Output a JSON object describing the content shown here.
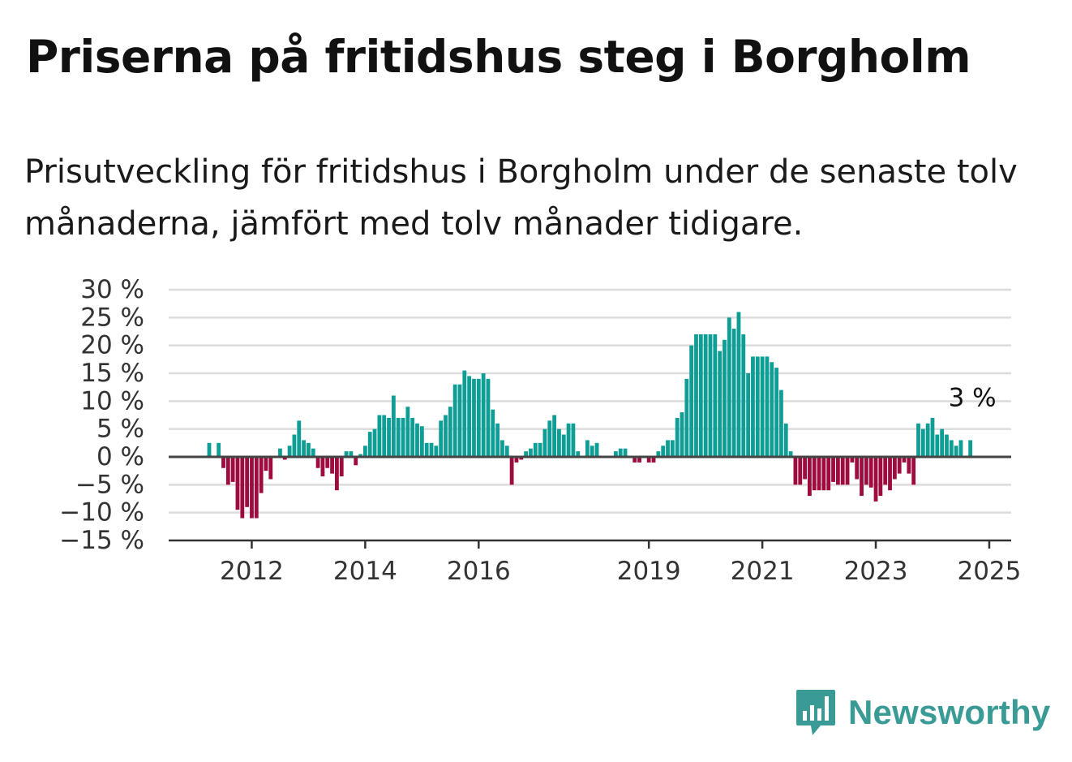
{
  "title": "Priserna på fritidshus steg i Borgholm",
  "subtitle": "Prisutveckling för fritidshus i Borgholm under de senaste tolv månaderna, jämfört med tolv månader tidigare.",
  "brand": {
    "name": "Newsworthy",
    "icon": "bar-chart-speech-bubble-icon",
    "color": "#3a9a95"
  },
  "colors": {
    "positive": "#0f9e96",
    "negative": "#9e0b3f",
    "grid": "#dcdcdc",
    "zero_line": "#444444"
  },
  "chart_data": {
    "type": "bar",
    "title": "",
    "xlabel": "",
    "ylabel": "",
    "ylim": [
      -15,
      30
    ],
    "y_ticks": [
      30,
      25,
      20,
      15,
      10,
      5,
      0,
      -5,
      -10,
      -15
    ],
    "y_tick_labels": [
      "30 %",
      "25 %",
      "20 %",
      "15 %",
      "10 %",
      "5 %",
      "0 %",
      "−5 %",
      "−10 %",
      "−15 %"
    ],
    "x_tick_labels": [
      "2012",
      "2014",
      "2016",
      "2019",
      "2021",
      "2023",
      "2025"
    ],
    "grid": true,
    "start": "2011-04",
    "frequency": "monthly",
    "values": [
      2.5,
      null,
      2.5,
      -2,
      -5,
      -4.5,
      -9.5,
      -11,
      -9,
      -11,
      -11,
      -6.5,
      -2.5,
      -4,
      null,
      1.5,
      -0.5,
      2,
      4,
      6.5,
      3,
      2.5,
      1.5,
      -2,
      -3.5,
      -2,
      -3,
      -6,
      -3.5,
      1,
      1,
      -1.5,
      0.5,
      2,
      4.5,
      5,
      7.5,
      7.5,
      7,
      11,
      7,
      7,
      9,
      7,
      6,
      5.5,
      2.5,
      2.5,
      2,
      6.5,
      7.5,
      9,
      13,
      13,
      15.5,
      14.5,
      14,
      14,
      15,
      14,
      8.5,
      6,
      3,
      2,
      -5,
      -1,
      -0.5,
      1,
      1.5,
      2.5,
      2.5,
      5,
      6.5,
      7.5,
      5,
      4,
      6,
      6,
      1,
      null,
      3,
      2,
      2.5,
      null,
      null,
      null,
      1,
      1.5,
      1.5,
      null,
      -1,
      -1,
      null,
      -1,
      -1,
      1,
      2,
      3,
      3,
      7,
      8,
      14,
      20,
      22,
      22,
      22,
      22,
      22,
      19,
      21,
      25,
      23,
      26,
      22,
      15,
      18,
      18,
      18,
      18,
      17,
      16,
      12,
      6,
      1,
      -5,
      -5,
      -4,
      -7,
      -6,
      -6,
      -6,
      -6,
      -4.5,
      -5,
      -5,
      -5,
      -1,
      -4,
      -7,
      -5,
      -5.5,
      -8,
      -7,
      -5,
      -6,
      -4,
      -3,
      -1,
      -3,
      -5,
      6,
      5,
      6,
      7,
      4,
      5,
      4,
      3,
      2,
      3,
      null,
      3
    ],
    "annotation": {
      "text": "3 %",
      "value": 3
    }
  }
}
